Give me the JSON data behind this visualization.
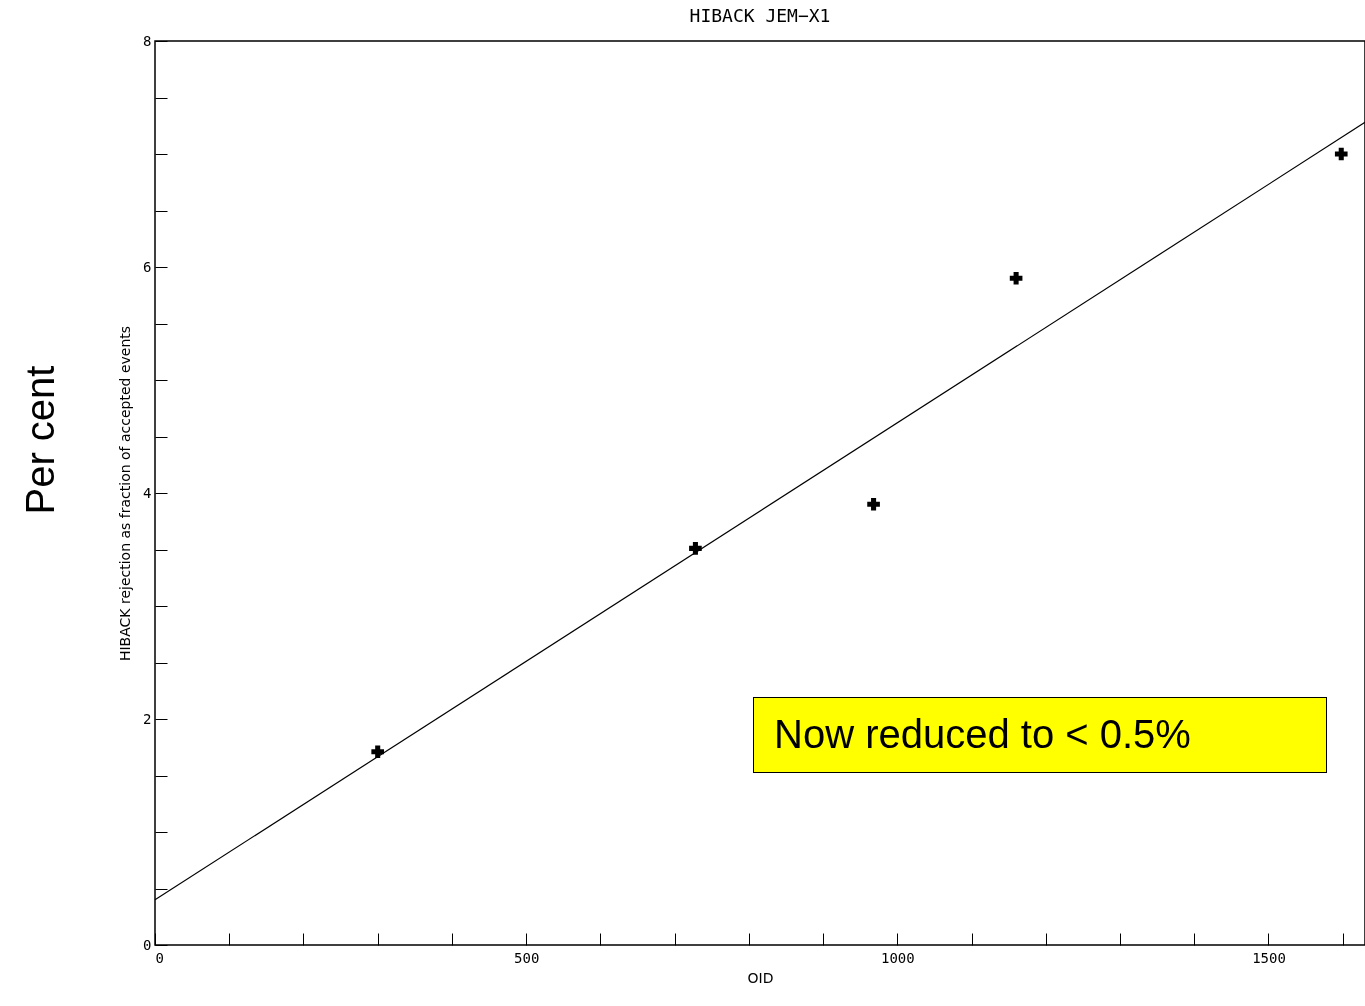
{
  "chart_data": {
    "type": "scatter",
    "title": "HIBACK JEM−X1",
    "xlabel": "OID",
    "ylabel": "HIBACK rejection as fraction of accepted events",
    "xlim": [
      0,
      1630
    ],
    "ylim": [
      0,
      8
    ],
    "xticks": [
      0,
      {
        "value": 100,
        "label": null
      },
      {
        "value": 200,
        "label": null
      },
      {
        "value": 300,
        "label": null
      },
      {
        "value": 400,
        "label": null
      },
      500,
      {
        "value": 600,
        "label": null
      },
      {
        "value": 700,
        "label": null
      },
      {
        "value": 800,
        "label": null
      },
      {
        "value": 900,
        "label": null
      },
      1000,
      {
        "value": 1100,
        "label": null
      },
      {
        "value": 1200,
        "label": null
      },
      {
        "value": 1300,
        "label": null
      },
      {
        "value": 1400,
        "label": null
      },
      1500,
      {
        "value": 1600,
        "label": null
      }
    ],
    "yticks": [
      0,
      {
        "value": 0.5,
        "label": null
      },
      {
        "value": 1,
        "label": null
      },
      {
        "value": 1.5,
        "label": null
      },
      2,
      {
        "value": 2.5,
        "label": null
      },
      {
        "value": 3,
        "label": null
      },
      {
        "value": 3.5,
        "label": null
      },
      4,
      {
        "value": 4.5,
        "label": null
      },
      {
        "value": 5,
        "label": null
      },
      {
        "value": 5.5,
        "label": null
      },
      6,
      {
        "value": 6.5,
        "label": null
      },
      {
        "value": 7,
        "label": null
      },
      {
        "value": 7.5,
        "label": null
      },
      8
    ],
    "grid": false,
    "marker": "cross",
    "series": [
      {
        "color": "#000000",
        "x": [
          300,
          728,
          968,
          1160,
          1598
        ],
        "values": [
          1.71,
          3.51,
          3.9,
          5.9,
          7.0
        ]
      },
      {
        "type": "line",
        "marker": "none",
        "color": "#000000",
        "x": [
          0,
          1630
        ],
        "values": [
          0.4,
          7.28
        ]
      }
    ],
    "annotations": [
      "Per cent",
      "Now reduced to < 0.5%"
    ]
  }
}
